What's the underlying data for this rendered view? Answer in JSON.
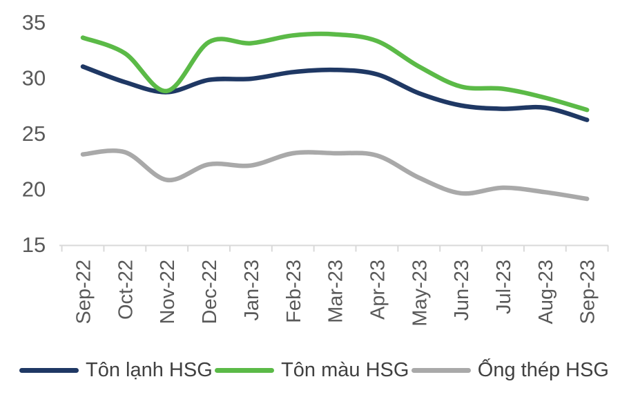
{
  "chart_data": {
    "type": "line",
    "title": "",
    "xlabel": "",
    "ylabel": "",
    "categories": [
      "Sep-22",
      "Oct-22",
      "Nov-22",
      "Dec-22",
      "Jan-23",
      "Feb-23",
      "Mar-23",
      "Apr-23",
      "May-23",
      "Jun-23",
      "Jul-23",
      "Aug-23",
      "Sep-23"
    ],
    "series": [
      {
        "name": "Tôn lạnh HSG",
        "color": "#1F3864",
        "values": [
          31.0,
          29.6,
          28.7,
          29.8,
          29.9,
          30.5,
          30.7,
          30.3,
          28.6,
          27.5,
          27.2,
          27.3,
          26.2
        ]
      },
      {
        "name": "Tôn màu HSG",
        "color": "#5BBA47",
        "values": [
          33.6,
          32.2,
          28.8,
          33.2,
          33.1,
          33.8,
          33.9,
          33.3,
          31.0,
          29.2,
          29.0,
          28.2,
          27.1
        ]
      },
      {
        "name": "Ống thép HSG",
        "color": "#A9A9A9",
        "values": [
          23.1,
          23.3,
          20.8,
          22.2,
          22.1,
          23.2,
          23.2,
          23.0,
          21.0,
          19.6,
          20.1,
          19.7,
          19.1
        ]
      }
    ],
    "y_ticks": [
      15,
      20,
      25,
      30,
      35
    ],
    "ylim": [
      15,
      35
    ],
    "grid": false,
    "smooth": true,
    "legend_position": "bottom",
    "axis_color": "#D9D9D9",
    "label_color": "#595959"
  }
}
